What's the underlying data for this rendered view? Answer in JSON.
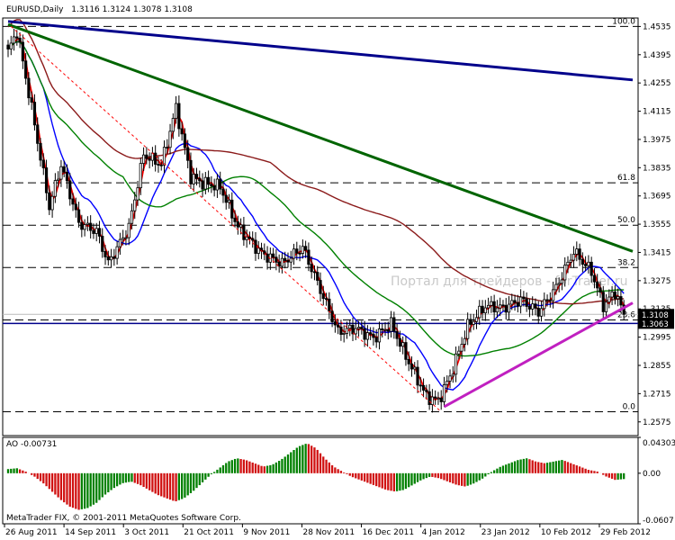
{
  "header": {
    "symbol": "EURUSD,Daily",
    "ohlc": "1.3116 1.3124 1.3078 1.3108"
  },
  "watermark": "Портал для трейдеров - forTrader.ru",
  "copyright": "MetaTrader FIX, © 2001-2011 MetaQuotes Software Corp.",
  "chart_data": [
    {
      "type": "candlestick",
      "title": "EURUSD,Daily",
      "ylim": [
        1.2507,
        1.4577
      ],
      "price_axis_ticks": [
        "1.4535",
        "1.4395",
        "1.4255",
        "1.4115",
        "1.3975",
        "1.3835",
        "1.3695",
        "1.3555",
        "1.3415",
        "1.3275",
        "1.3135",
        "1.2995",
        "1.2855",
        "1.2715",
        "1.2575"
      ],
      "current_price": "1.3108",
      "support_level": "1.3063",
      "date_labels": [
        "26 Aug 2011",
        "14 Sep 2011",
        "3 Oct 2011",
        "21 Oct 2011",
        "9 Nov 2011",
        "28 Nov 2011",
        "16 Dec 2011",
        "4 Jan 2012",
        "23 Jan 2012",
        "10 Feb 2012",
        "29 Feb 2012"
      ],
      "fibonacci_levels": [
        {
          "label": "100.0",
          "price": 1.4535
        },
        {
          "label": "61.8",
          "price": 1.376
        },
        {
          "label": "50.0",
          "price": 1.355
        },
        {
          "label": "38.2",
          "price": 1.334
        },
        {
          "label": "23.6",
          "price": 1.308
        },
        {
          "label": "0.0",
          "price": 1.2625
        }
      ],
      "price_path": [
        {
          "bar": 0,
          "price": 1.441
        },
        {
          "bar": 3,
          "price": 1.451
        },
        {
          "bar": 8,
          "price": 1.413
        },
        {
          "bar": 14,
          "price": 1.364
        },
        {
          "bar": 18,
          "price": 1.385
        },
        {
          "bar": 24,
          "price": 1.356
        },
        {
          "bar": 30,
          "price": 1.352
        },
        {
          "bar": 34,
          "price": 1.336
        },
        {
          "bar": 41,
          "price": 1.354
        },
        {
          "bar": 46,
          "price": 1.39
        },
        {
          "bar": 52,
          "price": 1.385
        },
        {
          "bar": 57,
          "price": 1.413
        },
        {
          "bar": 62,
          "price": 1.379
        },
        {
          "bar": 66,
          "price": 1.376
        },
        {
          "bar": 72,
          "price": 1.374
        },
        {
          "bar": 78,
          "price": 1.354
        },
        {
          "bar": 86,
          "price": 1.341
        },
        {
          "bar": 93,
          "price": 1.336
        },
        {
          "bar": 100,
          "price": 1.344
        },
        {
          "bar": 106,
          "price": 1.323
        },
        {
          "bar": 112,
          "price": 1.302
        },
        {
          "bar": 118,
          "price": 1.304
        },
        {
          "bar": 124,
          "price": 1.299
        },
        {
          "bar": 130,
          "price": 1.306
        },
        {
          "bar": 136,
          "price": 1.287
        },
        {
          "bar": 142,
          "price": 1.27
        },
        {
          "bar": 146,
          "price": 1.268
        },
        {
          "bar": 150,
          "price": 1.28
        },
        {
          "bar": 156,
          "price": 1.305
        },
        {
          "bar": 162,
          "price": 1.315
        },
        {
          "bar": 168,
          "price": 1.314
        },
        {
          "bar": 174,
          "price": 1.318
        },
        {
          "bar": 180,
          "price": 1.312
        },
        {
          "bar": 186,
          "price": 1.324
        },
        {
          "bar": 192,
          "price": 1.342
        },
        {
          "bar": 198,
          "price": 1.332
        },
        {
          "bar": 202,
          "price": 1.315
        },
        {
          "bar": 206,
          "price": 1.322
        },
        {
          "bar": 209,
          "price": 1.3108
        }
      ],
      "series": [
        {
          "name": "",
          "color": "#ff0000",
          "role": "fast-ma"
        },
        {
          "name": "",
          "color": "#0000ff",
          "role": "mid-ma"
        },
        {
          "name": "",
          "color": "#008000",
          "role": "slow-ma"
        },
        {
          "name": "",
          "color": "#8b1a1a",
          "role": "long-ma"
        }
      ],
      "trendlines": [
        {
          "color": "#00008b",
          "from": {
            "bar": 0,
            "price": 1.456
          },
          "to": {
            "bar": 212,
            "price": 1.427
          }
        },
        {
          "color": "#006400",
          "from": {
            "bar": 0,
            "price": 1.4545
          },
          "to": {
            "bar": 212,
            "price": 1.342
          }
        },
        {
          "color": "#c020c0",
          "from": {
            "bar": 148,
            "price": 1.265
          },
          "to": {
            "bar": 212,
            "price": 1.3165
          }
        }
      ]
    },
    {
      "type": "bar",
      "title": "AO -0.00731",
      "ylim": [
        -0.0607,
        0.04303
      ],
      "axis_ticks": [
        "0.04303",
        "0.00",
        "-0.0607"
      ],
      "values": [
        0.005,
        0.006,
        0.002,
        -0.004,
        -0.012,
        -0.022,
        -0.032,
        -0.04,
        -0.044,
        -0.042,
        -0.036,
        -0.026,
        -0.018,
        -0.012,
        -0.01,
        -0.014,
        -0.02,
        -0.026,
        -0.03,
        -0.034,
        -0.03,
        -0.022,
        -0.012,
        -0.002,
        0.006,
        0.014,
        0.018,
        0.016,
        0.012,
        0.008,
        0.01,
        0.016,
        0.024,
        0.032,
        0.036,
        0.03,
        0.018,
        0.008,
        0.002,
        -0.004,
        -0.008,
        -0.012,
        -0.016,
        -0.02,
        -0.022,
        -0.02,
        -0.014,
        -0.008,
        -0.004,
        -0.006,
        -0.01,
        -0.014,
        -0.016,
        -0.012,
        -0.006,
        0.002,
        0.008,
        0.012,
        0.016,
        0.018,
        0.014,
        0.012,
        0.014,
        0.016,
        0.012,
        0.008,
        0.004,
        0.002,
        -0.004,
        -0.008,
        -0.007
      ]
    }
  ]
}
